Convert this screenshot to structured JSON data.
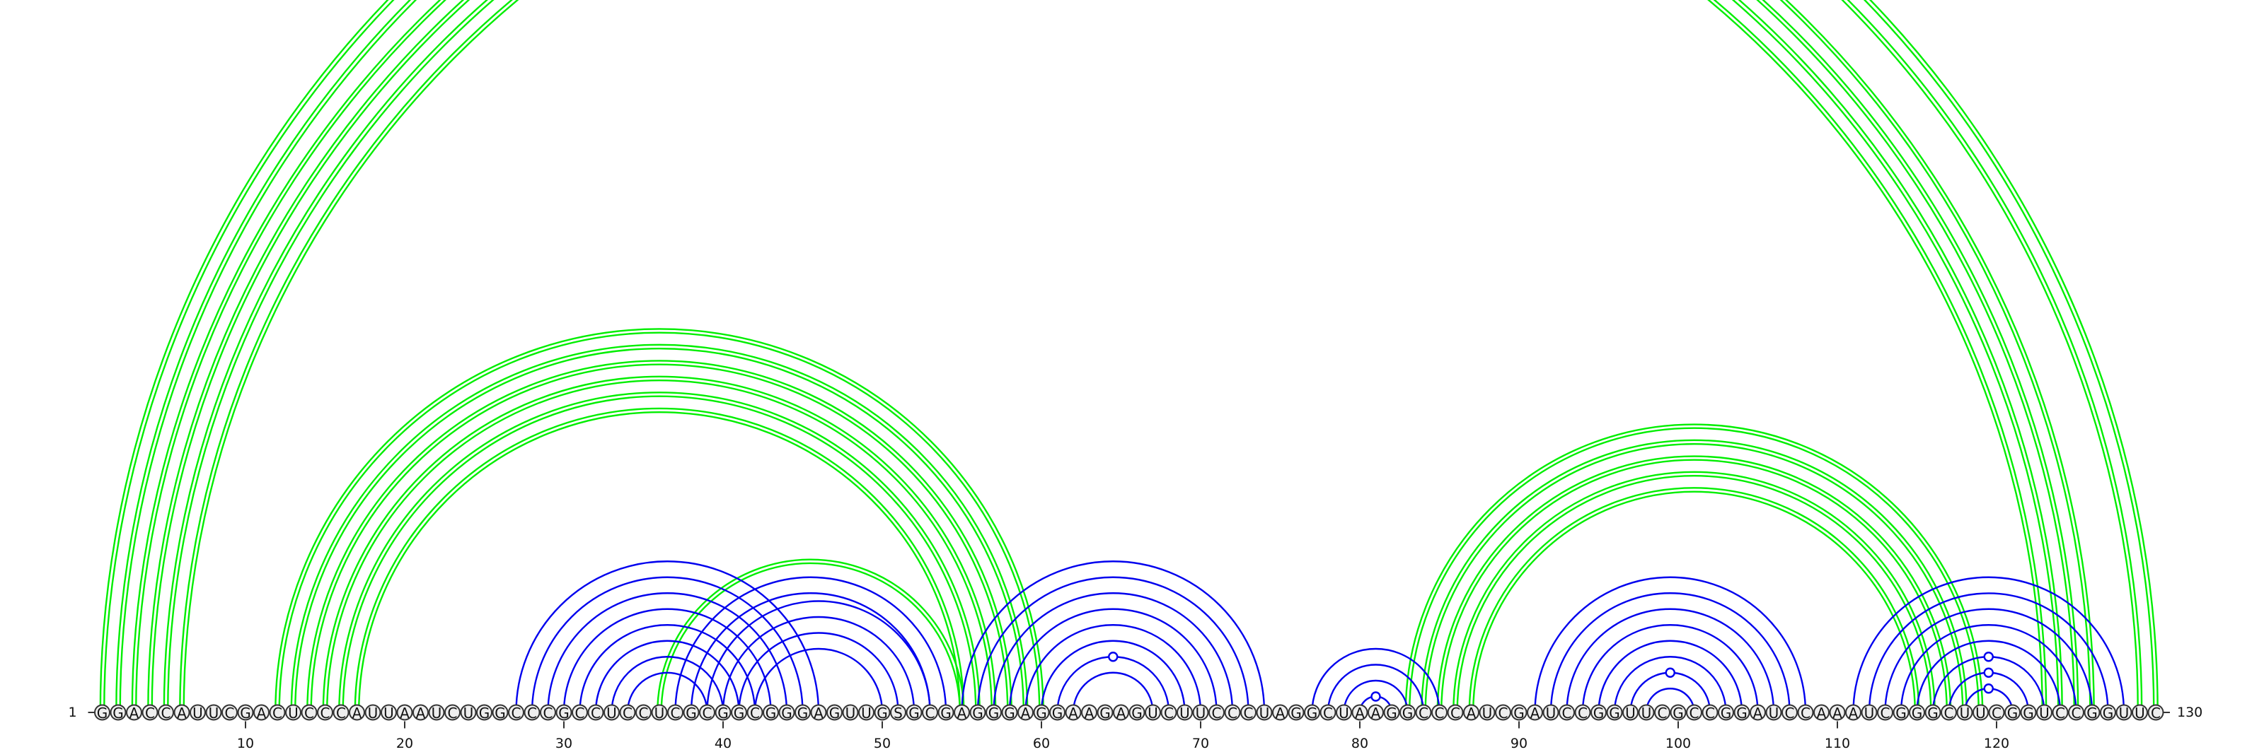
{
  "sequence": "GGACCAUUCGACUCCCAUUAAUCUGGCCCGCCUCCUCGCGGCGGGAGUUGSGCGAGGGAGGAAGAGUCUUCCCUAGGCUAAGGCCCAUCGAUCCGGUUCGCCGGAUCCAAAUCGGGCUUCGGUCCGGUUC",
  "start_label": "1",
  "end_label": "130",
  "ticks": [
    "10",
    "20",
    "30",
    "40",
    "50",
    "60",
    "70",
    "80",
    "90",
    "100",
    "110",
    "120"
  ],
  "colors": {
    "blue_arcs": "#0000ee",
    "green_arcs": "#00ee00"
  },
  "arcs": {
    "blue": [
      {
        "i": 27,
        "j": 46
      },
      {
        "i": 28,
        "j": 45
      },
      {
        "i": 29,
        "j": 44
      },
      {
        "i": 30,
        "j": 43
      },
      {
        "i": 31,
        "j": 42
      },
      {
        "i": 32,
        "j": 41
      },
      {
        "i": 33,
        "j": 40
      },
      {
        "i": 34,
        "j": 39
      },
      {
        "i": 37,
        "j": 54
      },
      {
        "i": 38,
        "j": 53
      },
      {
        "i": 39,
        "j": 53
      },
      {
        "i": 40,
        "j": 52
      },
      {
        "i": 41,
        "j": 51
      },
      {
        "i": 42,
        "j": 50
      },
      {
        "i": 55,
        "j": 74
      },
      {
        "i": 56,
        "j": 73
      },
      {
        "i": 57,
        "j": 72
      },
      {
        "i": 58,
        "j": 71
      },
      {
        "i": 59,
        "j": 70
      },
      {
        "i": 60,
        "j": 69
      },
      {
        "i": 61,
        "j": 68
      },
      {
        "i": 62,
        "j": 67
      },
      {
        "i": 77,
        "j": 85
      },
      {
        "i": 78,
        "j": 84
      },
      {
        "i": 79,
        "j": 83
      },
      {
        "i": 80,
        "j": 82
      },
      {
        "i": 91,
        "j": 108
      },
      {
        "i": 92,
        "j": 107
      },
      {
        "i": 93,
        "j": 106
      },
      {
        "i": 94,
        "j": 105
      },
      {
        "i": 95,
        "j": 104
      },
      {
        "i": 96,
        "j": 103
      },
      {
        "i": 97,
        "j": 102
      },
      {
        "i": 98,
        "j": 101
      },
      {
        "i": 111,
        "j": 128
      },
      {
        "i": 112,
        "j": 127
      },
      {
        "i": 113,
        "j": 126
      },
      {
        "i": 114,
        "j": 125
      },
      {
        "i": 115,
        "j": 124
      },
      {
        "i": 116,
        "j": 123
      },
      {
        "i": 117,
        "j": 122
      },
      {
        "i": 118,
        "j": 121
      }
    ],
    "blue_gu": [
      {
        "i": 61,
        "j": 68
      },
      {
        "i": 80,
        "j": 82
      },
      {
        "i": 97,
        "j": 102
      },
      {
        "i": 116,
        "j": 123
      },
      {
        "i": 117,
        "j": 122
      },
      {
        "i": 118,
        "j": 121
      }
    ],
    "green": [
      {
        "i": 1,
        "j": 130
      },
      {
        "i": 2,
        "j": 129
      },
      {
        "i": 3,
        "j": 126
      },
      {
        "i": 4,
        "j": 125
      },
      {
        "i": 5,
        "j": 124
      },
      {
        "i": 6,
        "j": 123
      },
      {
        "i": 12,
        "j": 60
      },
      {
        "i": 13,
        "j": 59
      },
      {
        "i": 14,
        "j": 58
      },
      {
        "i": 15,
        "j": 57
      },
      {
        "i": 16,
        "j": 56
      },
      {
        "i": 17,
        "j": 55
      },
      {
        "i": 36,
        "j": 55
      },
      {
        "i": 83,
        "j": 119
      },
      {
        "i": 84,
        "j": 118
      },
      {
        "i": 85,
        "j": 117
      },
      {
        "i": 86,
        "j": 116
      },
      {
        "i": 87,
        "j": 115
      }
    ]
  }
}
